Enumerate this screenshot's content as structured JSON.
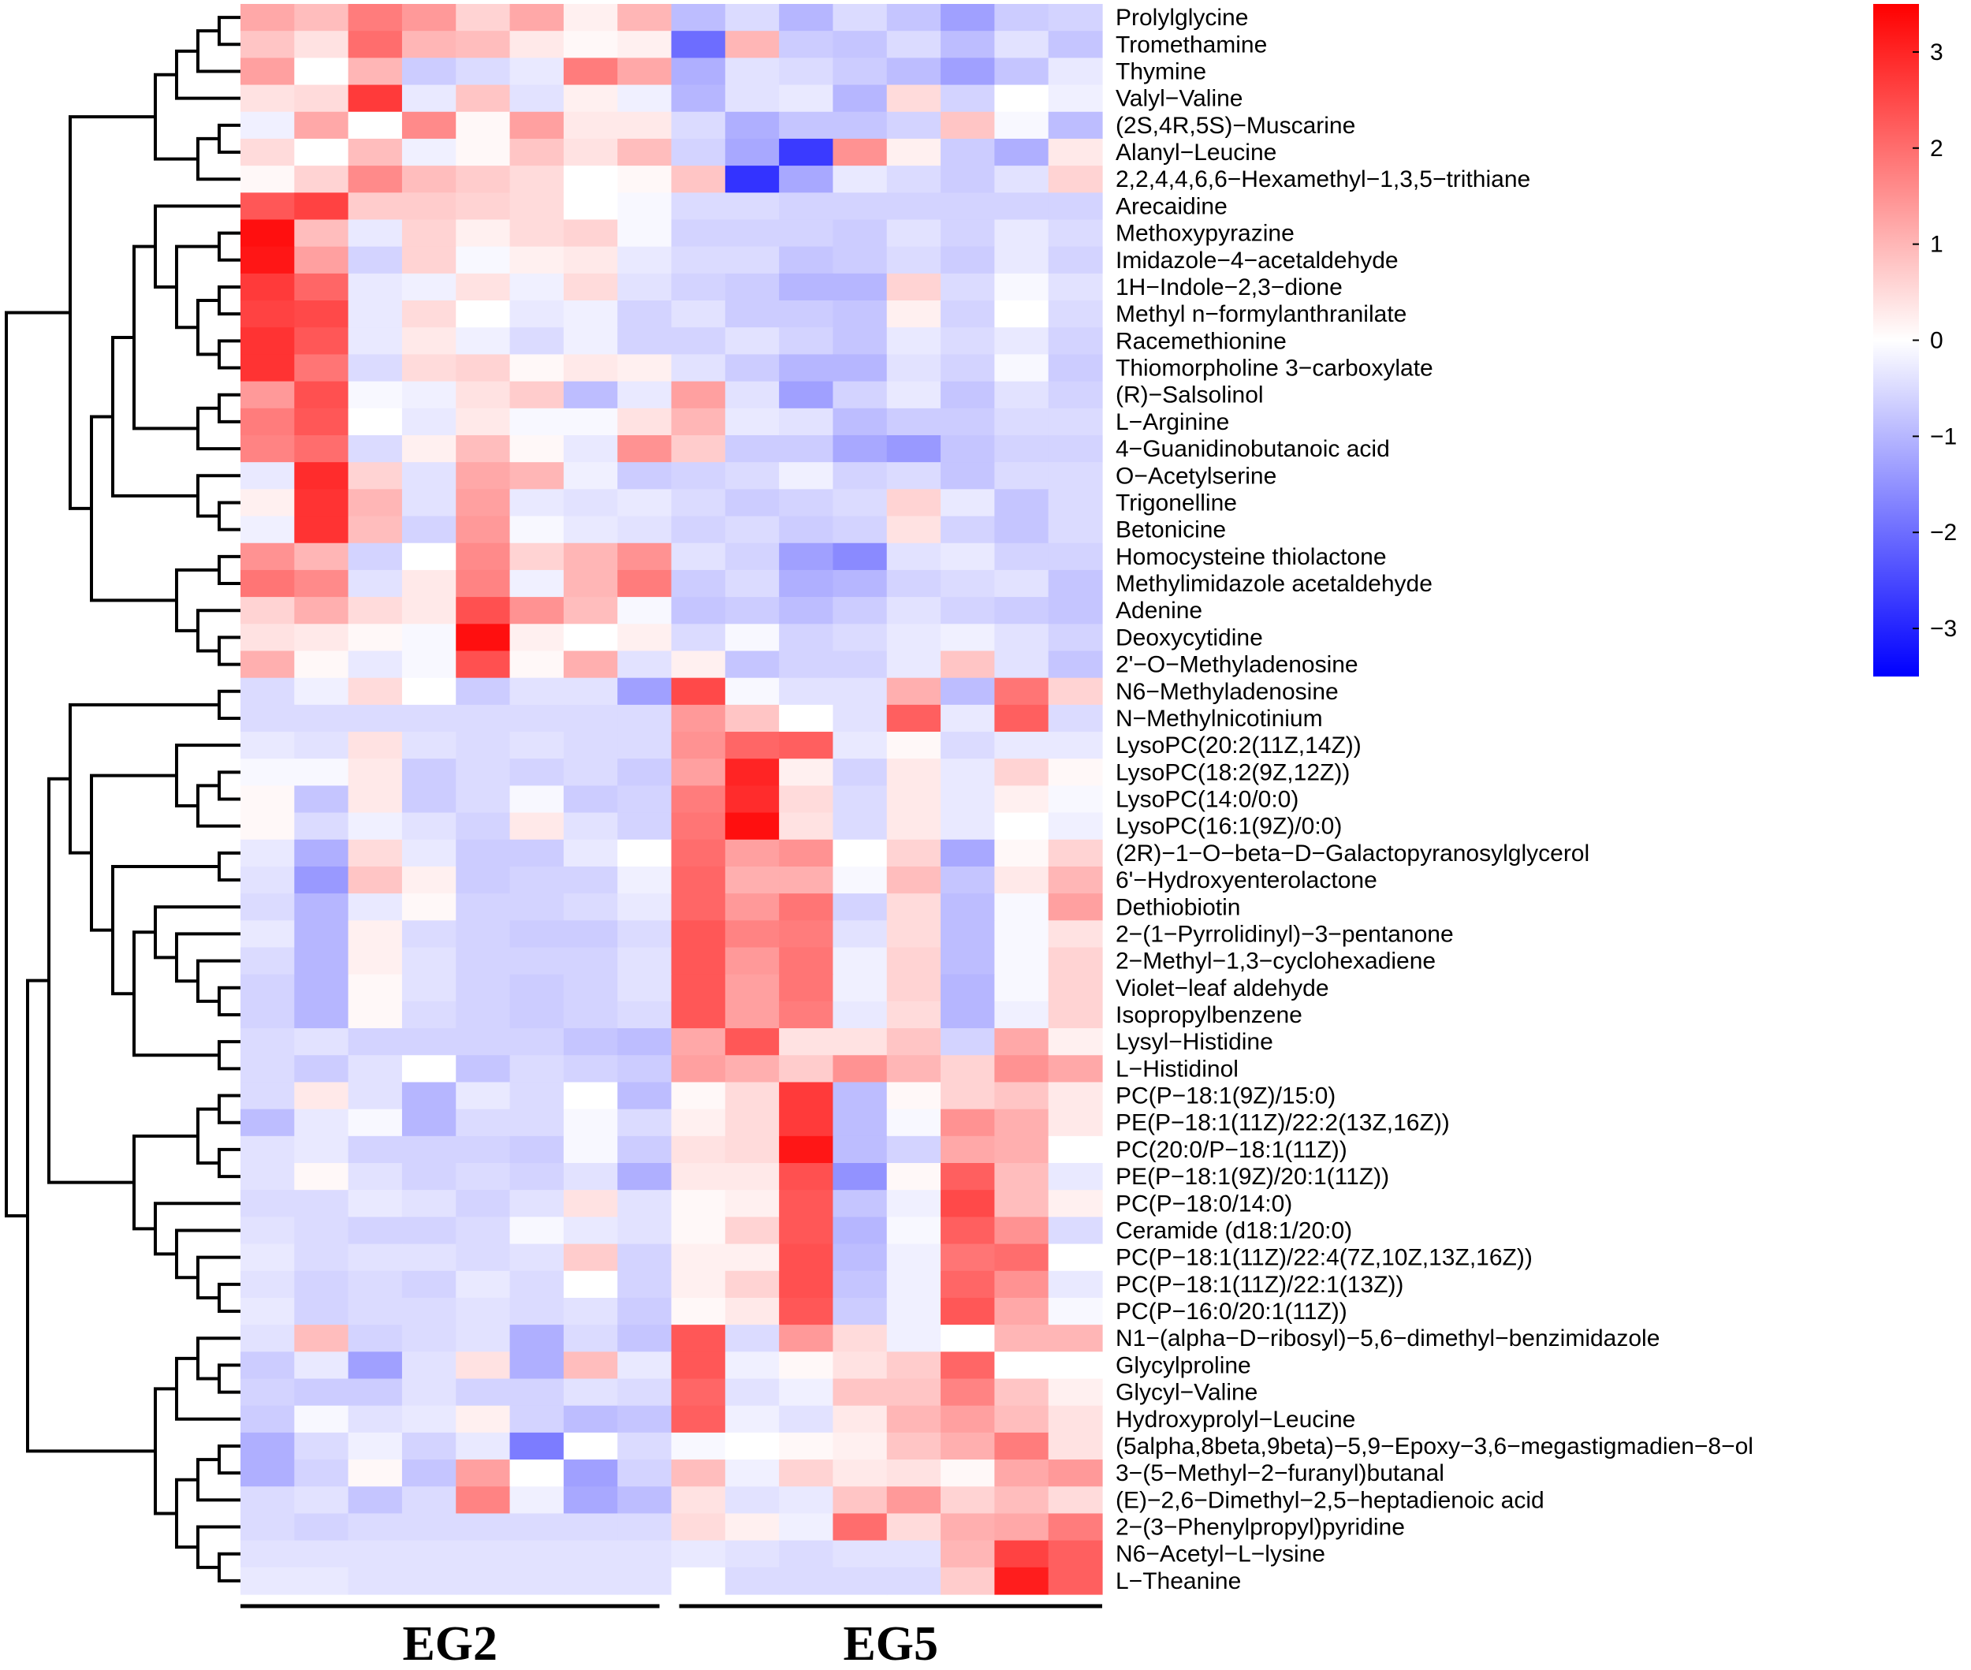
{
  "chart_data": {
    "type": "heatmap",
    "title": "",
    "groups": [
      {
        "name": "EG2",
        "columns": 8
      },
      {
        "name": "EG5",
        "columns": 8
      }
    ],
    "rows": [
      "Prolylglycine",
      "Tromethamine",
      "Thymine",
      "Valyl−Valine",
      "(2S,4R,5S)−Muscarine",
      "Alanyl−Leucine",
      "2,2,4,4,6,6−Hexamethyl−1,3,5−trithiane",
      "Arecaidine",
      "Methoxypyrazine",
      "Imidazole−4−acetaldehyde",
      "1H−Indole−2,3−dione",
      "Methyl n−formylanthranilate",
      "Racemethionine",
      "Thiomorpholine 3−carboxylate",
      "(R)−Salsolinol",
      "L−Arginine",
      "4−Guanidinobutanoic acid",
      "O−Acetylserine",
      "Trigonelline",
      "Betonicine",
      "Homocysteine thiolactone",
      "Methylimidazole acetaldehyde",
      "Adenine",
      "Deoxycytidine",
      "2'−O−Methyladenosine",
      "N6−Methyladenosine",
      "N−Methylnicotinium",
      "LysoPC(20:2(11Z,14Z))",
      "LysoPC(18:2(9Z,12Z))",
      "LysoPC(14:0/0:0)",
      "LysoPC(16:1(9Z)/0:0)",
      "(2R)−1−O−beta−D−Galactopyranosylglycerol",
      "6'−Hydroxyenterolactone",
      "Dethiobiotin",
      "2−(1−Pyrrolidinyl)−3−pentanone",
      "2−Methyl−1,3−cyclohexadiene",
      "Violet−leaf aldehyde",
      "Isopropylbenzene",
      "Lysyl−Histidine",
      "L−Histidinol",
      "PC(P−18:1(9Z)/15:0)",
      "PE(P−18:1(11Z)/22:2(13Z,16Z))",
      "PC(20:0/P−18:1(11Z))",
      "PE(P−18:1(9Z)/20:1(11Z))",
      "PC(P−18:0/14:0)",
      "Ceramide (d18:1/20:0)",
      "PC(P−18:1(11Z)/22:4(7Z,10Z,13Z,16Z))",
      "PC(P−18:1(11Z)/22:1(13Z))",
      "PC(P−16:0/20:1(11Z))",
      "N1−(alpha−D−ribosyl)−5,6−dimethyl−benzimidazole",
      "Glycylproline",
      "Glycyl−Valine",
      "Hydroxyprolyl−Leucine",
      "(5alpha,8beta,9beta)−5,9−Epoxy−3,6−megastigmadien−8−ol",
      "3−(5−Methyl−2−furanyl)butanal",
      "(E)−2,6−Dimethyl−2,5−heptadienoic acid",
      "2−(3−Phenylpropyl)pyridine",
      "N6−Acetyl−L−lysine",
      "L−Theanine"
    ],
    "values": [
      [
        1.2,
        0.9,
        1.8,
        1.4,
        0.6,
        1.2,
        0.2,
        1.0,
        -0.9,
        -0.5,
        -1.0,
        -0.5,
        -0.8,
        -1.3,
        -0.7,
        -0.6
      ],
      [
        0.8,
        0.4,
        2.0,
        1.0,
        0.9,
        0.3,
        0.1,
        0.2,
        -2.0,
        1.0,
        -0.7,
        -0.8,
        -0.5,
        -0.9,
        -0.4,
        -0.8
      ],
      [
        1.3,
        0.0,
        1.0,
        -0.7,
        -0.5,
        -0.3,
        1.8,
        1.2,
        -1.1,
        -0.4,
        -0.5,
        -0.7,
        -0.9,
        -1.3,
        -0.8,
        -0.3
      ],
      [
        0.4,
        0.5,
        2.7,
        -0.3,
        0.8,
        -0.4,
        0.2,
        -0.2,
        -1.0,
        -0.4,
        -0.3,
        -1.0,
        0.5,
        -0.6,
        0.0,
        -0.2
      ],
      [
        -0.2,
        1.2,
        0.0,
        1.6,
        0.1,
        1.3,
        0.3,
        0.3,
        -0.5,
        -1.1,
        -0.8,
        -0.8,
        -0.6,
        0.8,
        -0.1,
        -0.9
      ],
      [
        0.5,
        0.0,
        0.9,
        -0.2,
        0.1,
        0.8,
        0.4,
        0.9,
        -0.6,
        -1.2,
        -2.7,
        1.5,
        0.2,
        -0.7,
        -1.1,
        0.3
      ],
      [
        0.1,
        0.6,
        1.6,
        0.9,
        0.7,
        0.5,
        0.0,
        0.1,
        0.8,
        -2.8,
        -1.2,
        -0.3,
        -0.5,
        -0.7,
        -0.4,
        0.6
      ],
      [
        2.3,
        2.6,
        0.7,
        0.7,
        0.6,
        0.5,
        0.0,
        -0.1,
        -0.5,
        -0.5,
        -0.6,
        -0.6,
        -0.6,
        -0.6,
        -0.6,
        -0.6
      ],
      [
        3.3,
        0.9,
        -0.3,
        0.6,
        0.2,
        0.5,
        0.6,
        -0.1,
        -0.6,
        -0.6,
        -0.6,
        -0.7,
        -0.4,
        -0.6,
        -0.3,
        -0.5
      ],
      [
        3.2,
        1.3,
        -0.6,
        0.6,
        -0.1,
        0.2,
        0.3,
        -0.3,
        -0.5,
        -0.5,
        -0.8,
        -0.7,
        -0.5,
        -0.7,
        -0.3,
        -0.6
      ],
      [
        2.7,
        2.1,
        -0.3,
        -0.2,
        0.4,
        -0.2,
        0.5,
        -0.4,
        -0.6,
        -0.7,
        -1.0,
        -1.0,
        0.6,
        -0.5,
        -0.1,
        -0.4
      ],
      [
        2.6,
        2.5,
        -0.3,
        0.5,
        0.0,
        -0.3,
        -0.2,
        -0.6,
        -0.4,
        -0.7,
        -0.7,
        -0.8,
        0.2,
        -0.6,
        0.0,
        -0.5
      ],
      [
        2.8,
        2.3,
        -0.3,
        0.3,
        -0.2,
        -0.5,
        -0.2,
        -0.6,
        -0.6,
        -0.4,
        -0.6,
        -0.8,
        -0.3,
        -0.5,
        -0.3,
        -0.6
      ],
      [
        2.8,
        1.9,
        -0.5,
        0.5,
        0.6,
        0.1,
        0.3,
        0.2,
        -0.4,
        -0.7,
        -1.0,
        -1.0,
        -0.4,
        -0.6,
        -0.1,
        -0.7
      ],
      [
        1.4,
        2.4,
        -0.1,
        -0.2,
        0.4,
        0.7,
        -0.9,
        -0.3,
        1.3,
        -0.4,
        -1.3,
        -0.6,
        -0.3,
        -0.8,
        -0.4,
        -0.6
      ],
      [
        1.8,
        2.3,
        0.0,
        -0.3,
        0.3,
        -0.1,
        -0.1,
        0.4,
        1.0,
        -0.3,
        -0.4,
        -0.9,
        -0.7,
        -0.7,
        -0.5,
        -0.5
      ],
      [
        1.7,
        2.0,
        -0.5,
        0.2,
        0.9,
        0.1,
        -0.3,
        1.5,
        0.7,
        -0.7,
        -0.7,
        -1.2,
        -1.4,
        -0.8,
        -0.6,
        -0.6
      ],
      [
        -0.3,
        2.9,
        0.6,
        -0.4,
        1.2,
        1.0,
        -0.2,
        -0.7,
        -0.6,
        -0.5,
        -0.2,
        -0.6,
        -0.5,
        -0.8,
        -0.5,
        -0.5
      ],
      [
        0.2,
        2.8,
        1.0,
        -0.4,
        1.3,
        -0.3,
        -0.4,
        -0.3,
        -0.5,
        -0.7,
        -0.6,
        -0.5,
        0.6,
        -0.3,
        -0.8,
        -0.5
      ],
      [
        -0.2,
        2.8,
        0.9,
        -0.6,
        1.4,
        -0.1,
        -0.3,
        -0.4,
        -0.6,
        -0.5,
        -0.7,
        -0.6,
        0.4,
        -0.6,
        -0.8,
        -0.5
      ],
      [
        1.5,
        1.0,
        -0.6,
        0.0,
        1.6,
        0.6,
        1.0,
        1.5,
        -0.4,
        -0.6,
        -1.3,
        -1.6,
        -0.4,
        -0.3,
        -0.6,
        -0.6
      ],
      [
        1.9,
        1.6,
        -0.4,
        0.3,
        1.7,
        -0.2,
        1.0,
        1.8,
        -0.7,
        -0.5,
        -1.1,
        -1.0,
        -0.6,
        -0.5,
        -0.4,
        -0.8
      ],
      [
        0.6,
        1.1,
        0.5,
        0.3,
        2.4,
        1.5,
        0.9,
        -0.1,
        -0.8,
        -0.7,
        -0.9,
        -0.7,
        -0.4,
        -0.6,
        -0.7,
        -0.8
      ],
      [
        0.4,
        0.3,
        0.1,
        -0.1,
        3.3,
        0.2,
        0.0,
        0.2,
        -0.5,
        -0.1,
        -0.6,
        -0.5,
        -0.3,
        -0.2,
        -0.4,
        -0.6
      ],
      [
        1.1,
        0.1,
        -0.3,
        -0.1,
        2.4,
        0.1,
        1.1,
        -0.4,
        0.2,
        -0.8,
        -0.6,
        -0.6,
        -0.3,
        0.8,
        -0.4,
        -0.8
      ],
      [
        -0.5,
        -0.2,
        0.5,
        0.0,
        -0.7,
        -0.4,
        -0.4,
        -1.3,
        2.5,
        -0.1,
        -0.4,
        -0.4,
        1.1,
        -0.9,
        1.9,
        0.6
      ],
      [
        -0.5,
        -0.5,
        -0.5,
        -0.5,
        -0.5,
        -0.5,
        -0.5,
        -0.5,
        1.4,
        0.8,
        0.0,
        -0.4,
        2.2,
        -0.3,
        2.2,
        -0.5
      ],
      [
        -0.3,
        -0.4,
        0.4,
        -0.4,
        -0.5,
        -0.4,
        -0.5,
        -0.5,
        1.5,
        2.1,
        2.2,
        -0.3,
        0.1,
        -0.5,
        -0.3,
        -0.3
      ],
      [
        -0.1,
        -0.1,
        0.3,
        -0.7,
        -0.5,
        -0.6,
        -0.5,
        -0.7,
        1.3,
        3.0,
        0.2,
        -0.6,
        0.3,
        -0.3,
        0.6,
        0.1
      ],
      [
        0.1,
        -0.8,
        0.3,
        -0.7,
        -0.5,
        -0.1,
        -0.7,
        -0.6,
        1.8,
        2.9,
        0.5,
        -0.5,
        0.3,
        -0.3,
        0.2,
        -0.1
      ],
      [
        0.1,
        -0.5,
        -0.2,
        -0.4,
        -0.6,
        0.3,
        -0.4,
        -0.6,
        1.9,
        3.3,
        0.4,
        -0.5,
        0.3,
        -0.3,
        0.0,
        -0.2
      ],
      [
        -0.3,
        -1.1,
        0.5,
        -0.3,
        -0.7,
        -0.7,
        -0.3,
        0.0,
        2.0,
        1.3,
        1.5,
        0.0,
        0.6,
        -1.2,
        0.1,
        0.6
      ],
      [
        -0.4,
        -1.4,
        0.8,
        0.2,
        -0.7,
        -0.6,
        -0.6,
        -0.2,
        2.1,
        1.1,
        1.1,
        -0.1,
        0.9,
        -0.8,
        0.3,
        1.0
      ],
      [
        -0.5,
        -1.0,
        -0.3,
        0.1,
        -0.6,
        -0.6,
        -0.5,
        -0.3,
        2.1,
        1.4,
        1.9,
        -0.6,
        0.5,
        -0.9,
        -0.1,
        1.3
      ],
      [
        -0.3,
        -1.0,
        0.2,
        -0.5,
        -0.6,
        -0.7,
        -0.7,
        -0.5,
        2.3,
        1.7,
        1.8,
        -0.4,
        0.5,
        -0.9,
        -0.1,
        0.4
      ],
      [
        -0.5,
        -1.0,
        0.2,
        -0.4,
        -0.6,
        -0.6,
        -0.6,
        -0.4,
        2.3,
        1.4,
        1.9,
        -0.2,
        0.6,
        -0.9,
        -0.1,
        0.6
      ],
      [
        -0.6,
        -1.0,
        0.1,
        -0.4,
        -0.6,
        -0.7,
        -0.6,
        -0.4,
        2.3,
        1.3,
        1.9,
        -0.2,
        0.6,
        -1.0,
        -0.1,
        0.6
      ],
      [
        -0.6,
        -1.0,
        0.1,
        -0.5,
        -0.6,
        -0.7,
        -0.6,
        -0.5,
        2.3,
        1.3,
        1.8,
        -0.3,
        0.5,
        -1.0,
        -0.2,
        0.6
      ],
      [
        -0.5,
        -0.4,
        -0.6,
        -0.6,
        -0.6,
        -0.6,
        -0.8,
        -0.9,
        1.2,
        2.3,
        0.4,
        0.4,
        0.8,
        -0.6,
        1.2,
        0.2
      ],
      [
        -0.5,
        -0.7,
        -0.4,
        0.0,
        -0.8,
        -0.5,
        -0.6,
        -0.7,
        1.3,
        1.1,
        0.7,
        1.5,
        1.0,
        0.6,
        1.5,
        1.2
      ],
      [
        -0.5,
        0.3,
        -0.4,
        -1.0,
        -0.3,
        -0.5,
        0.0,
        -0.9,
        0.1,
        0.5,
        2.7,
        -0.9,
        0.1,
        0.6,
        0.8,
        0.3
      ],
      [
        -0.9,
        -0.3,
        -0.1,
        -1.0,
        -0.5,
        -0.5,
        -0.1,
        -0.5,
        0.2,
        0.5,
        2.7,
        -0.9,
        -0.1,
        1.5,
        1.1,
        0.3
      ],
      [
        -0.4,
        -0.3,
        -0.6,
        -0.6,
        -0.6,
        -0.7,
        -0.1,
        -0.7,
        0.4,
        0.5,
        3.2,
        -0.9,
        -0.6,
        1.2,
        1.1,
        0.0
      ],
      [
        -0.4,
        0.1,
        -0.4,
        -0.6,
        -0.5,
        -0.6,
        -0.4,
        -1.1,
        0.3,
        0.3,
        2.4,
        -1.5,
        0.1,
        2.2,
        0.9,
        -0.3
      ],
      [
        -0.5,
        -0.5,
        -0.3,
        -0.4,
        -0.6,
        -0.4,
        0.4,
        -0.4,
        0.1,
        0.2,
        2.3,
        -0.8,
        -0.2,
        2.5,
        0.9,
        0.2
      ],
      [
        -0.4,
        -0.5,
        -0.6,
        -0.6,
        -0.5,
        -0.1,
        -0.3,
        -0.4,
        0.1,
        0.6,
        2.3,
        -1.0,
        -0.1,
        2.2,
        1.5,
        -0.5
      ],
      [
        -0.3,
        -0.5,
        -0.4,
        -0.4,
        -0.5,
        -0.4,
        0.7,
        -0.6,
        0.2,
        0.2,
        2.4,
        -0.9,
        -0.2,
        1.9,
        2.0,
        0.0
      ],
      [
        -0.4,
        -0.6,
        -0.5,
        -0.6,
        -0.3,
        -0.5,
        0.0,
        -0.6,
        0.2,
        0.6,
        2.4,
        -0.8,
        -0.2,
        2.1,
        1.5,
        -0.3
      ],
      [
        -0.3,
        -0.6,
        -0.5,
        -0.5,
        -0.4,
        -0.5,
        -0.4,
        -0.7,
        0.1,
        0.3,
        2.3,
        -0.7,
        -0.2,
        2.3,
        1.2,
        -0.1
      ],
      [
        -0.4,
        0.9,
        -0.6,
        -0.5,
        -0.4,
        -1.1,
        -0.5,
        -0.8,
        2.3,
        -0.5,
        1.4,
        0.5,
        -0.2,
        0.0,
        1.0,
        1.0
      ],
      [
        -0.7,
        -0.3,
        -1.3,
        -0.4,
        0.4,
        -1.1,
        0.9,
        -0.3,
        2.3,
        -0.2,
        0.1,
        0.4,
        0.7,
        2.1,
        0.0,
        0.0
      ],
      [
        -0.6,
        -0.7,
        -0.7,
        -0.4,
        -0.6,
        -0.6,
        -0.4,
        -0.5,
        2.1,
        -0.4,
        -0.2,
        0.8,
        0.8,
        1.7,
        0.8,
        0.2
      ],
      [
        -0.7,
        -0.1,
        -0.4,
        -0.3,
        0.2,
        -0.6,
        -0.9,
        -0.8,
        2.2,
        -0.2,
        -0.4,
        0.3,
        1.0,
        1.3,
        0.9,
        0.4
      ],
      [
        -1.1,
        -0.5,
        -0.2,
        -0.6,
        -0.3,
        -1.8,
        0.0,
        -0.5,
        -0.1,
        0.0,
        0.1,
        0.2,
        0.8,
        1.1,
        1.8,
        0.4
      ],
      [
        -1.1,
        -0.6,
        0.1,
        -0.8,
        1.3,
        0.0,
        -1.3,
        -0.6,
        0.9,
        -0.2,
        0.6,
        0.3,
        0.4,
        0.1,
        1.2,
        1.4
      ],
      [
        -0.5,
        -0.4,
        -0.8,
        -0.5,
        1.7,
        -0.2,
        -1.2,
        -0.9,
        0.4,
        -0.4,
        -0.3,
        0.8,
        1.4,
        0.6,
        0.9,
        0.5
      ],
      [
        -0.5,
        -0.6,
        -0.5,
        -0.5,
        -0.5,
        -0.5,
        -0.5,
        -0.5,
        0.5,
        0.2,
        -0.2,
        2.0,
        0.5,
        1.1,
        1.2,
        1.8
      ],
      [
        -0.4,
        -0.4,
        -0.4,
        -0.4,
        -0.4,
        -0.4,
        -0.4,
        -0.4,
        -0.3,
        -0.4,
        -0.5,
        -0.4,
        -0.4,
        1.0,
        2.6,
        2.2
      ],
      [
        -0.3,
        -0.3,
        -0.4,
        -0.4,
        -0.4,
        -0.4,
        -0.4,
        -0.4,
        0.0,
        -0.5,
        -0.5,
        -0.5,
        -0.5,
        0.7,
        3.1,
        2.2
      ]
    ],
    "scale_min": -3.5,
    "scale_max": 3.5,
    "colorbar": {
      "ticks": [
        3,
        2,
        1,
        0,
        -1,
        -2,
        -3
      ],
      "tick_labels": [
        "3",
        "2",
        "1",
        "0",
        "−1",
        "−2",
        "−3"
      ]
    },
    "colors": {
      "low": "#0000ff",
      "mid": "#ffffff",
      "high": "#ff0000"
    },
    "dendrogram": "row clustering tree on left"
  }
}
